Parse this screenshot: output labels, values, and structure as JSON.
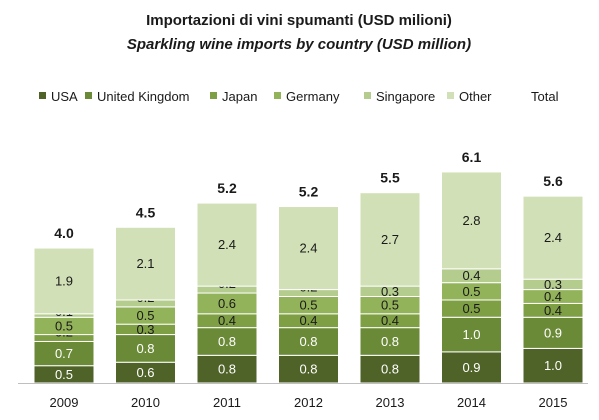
{
  "chart_data": {
    "type": "bar",
    "stacked": true,
    "title": "Importazioni di vini spumanti (USD milioni)",
    "subtitle": "Sparkling wine imports by country (USD million)",
    "categories": [
      "2009",
      "2010",
      "2011",
      "2012",
      "2013",
      "2014",
      "2015"
    ],
    "series": [
      {
        "name": "USA",
        "values": [
          0.5,
          0.6,
          0.8,
          0.8,
          0.8,
          0.9,
          1.0
        ],
        "color": "#4f6228"
      },
      {
        "name": "United Kingdom",
        "values": [
          0.7,
          0.8,
          0.8,
          0.8,
          0.8,
          1.0,
          0.9
        ],
        "color": "#6b8a38"
      },
      {
        "name": "Japan",
        "values": [
          0.2,
          0.3,
          0.4,
          0.4,
          0.4,
          0.5,
          0.4
        ],
        "color": "#7f9f45"
      },
      {
        "name": "Germany",
        "values": [
          0.5,
          0.5,
          0.6,
          0.5,
          0.5,
          0.5,
          0.4
        ],
        "color": "#93b35a"
      },
      {
        "name": "Singapore",
        "values": [
          0.1,
          0.2,
          0.2,
          0.2,
          0.3,
          0.4,
          0.3
        ],
        "color": "#b4cc8e"
      },
      {
        "name": "Other",
        "values": [
          1.9,
          2.1,
          2.4,
          2.4,
          2.7,
          2.8,
          2.4
        ],
        "color": "#d1e0b6"
      }
    ],
    "totals": {
      "name": "Total",
      "values": [
        4.0,
        4.5,
        5.2,
        5.2,
        5.5,
        6.1,
        5.6
      ]
    },
    "legend": "top",
    "grid": false,
    "xlabel": "",
    "ylabel": ""
  }
}
